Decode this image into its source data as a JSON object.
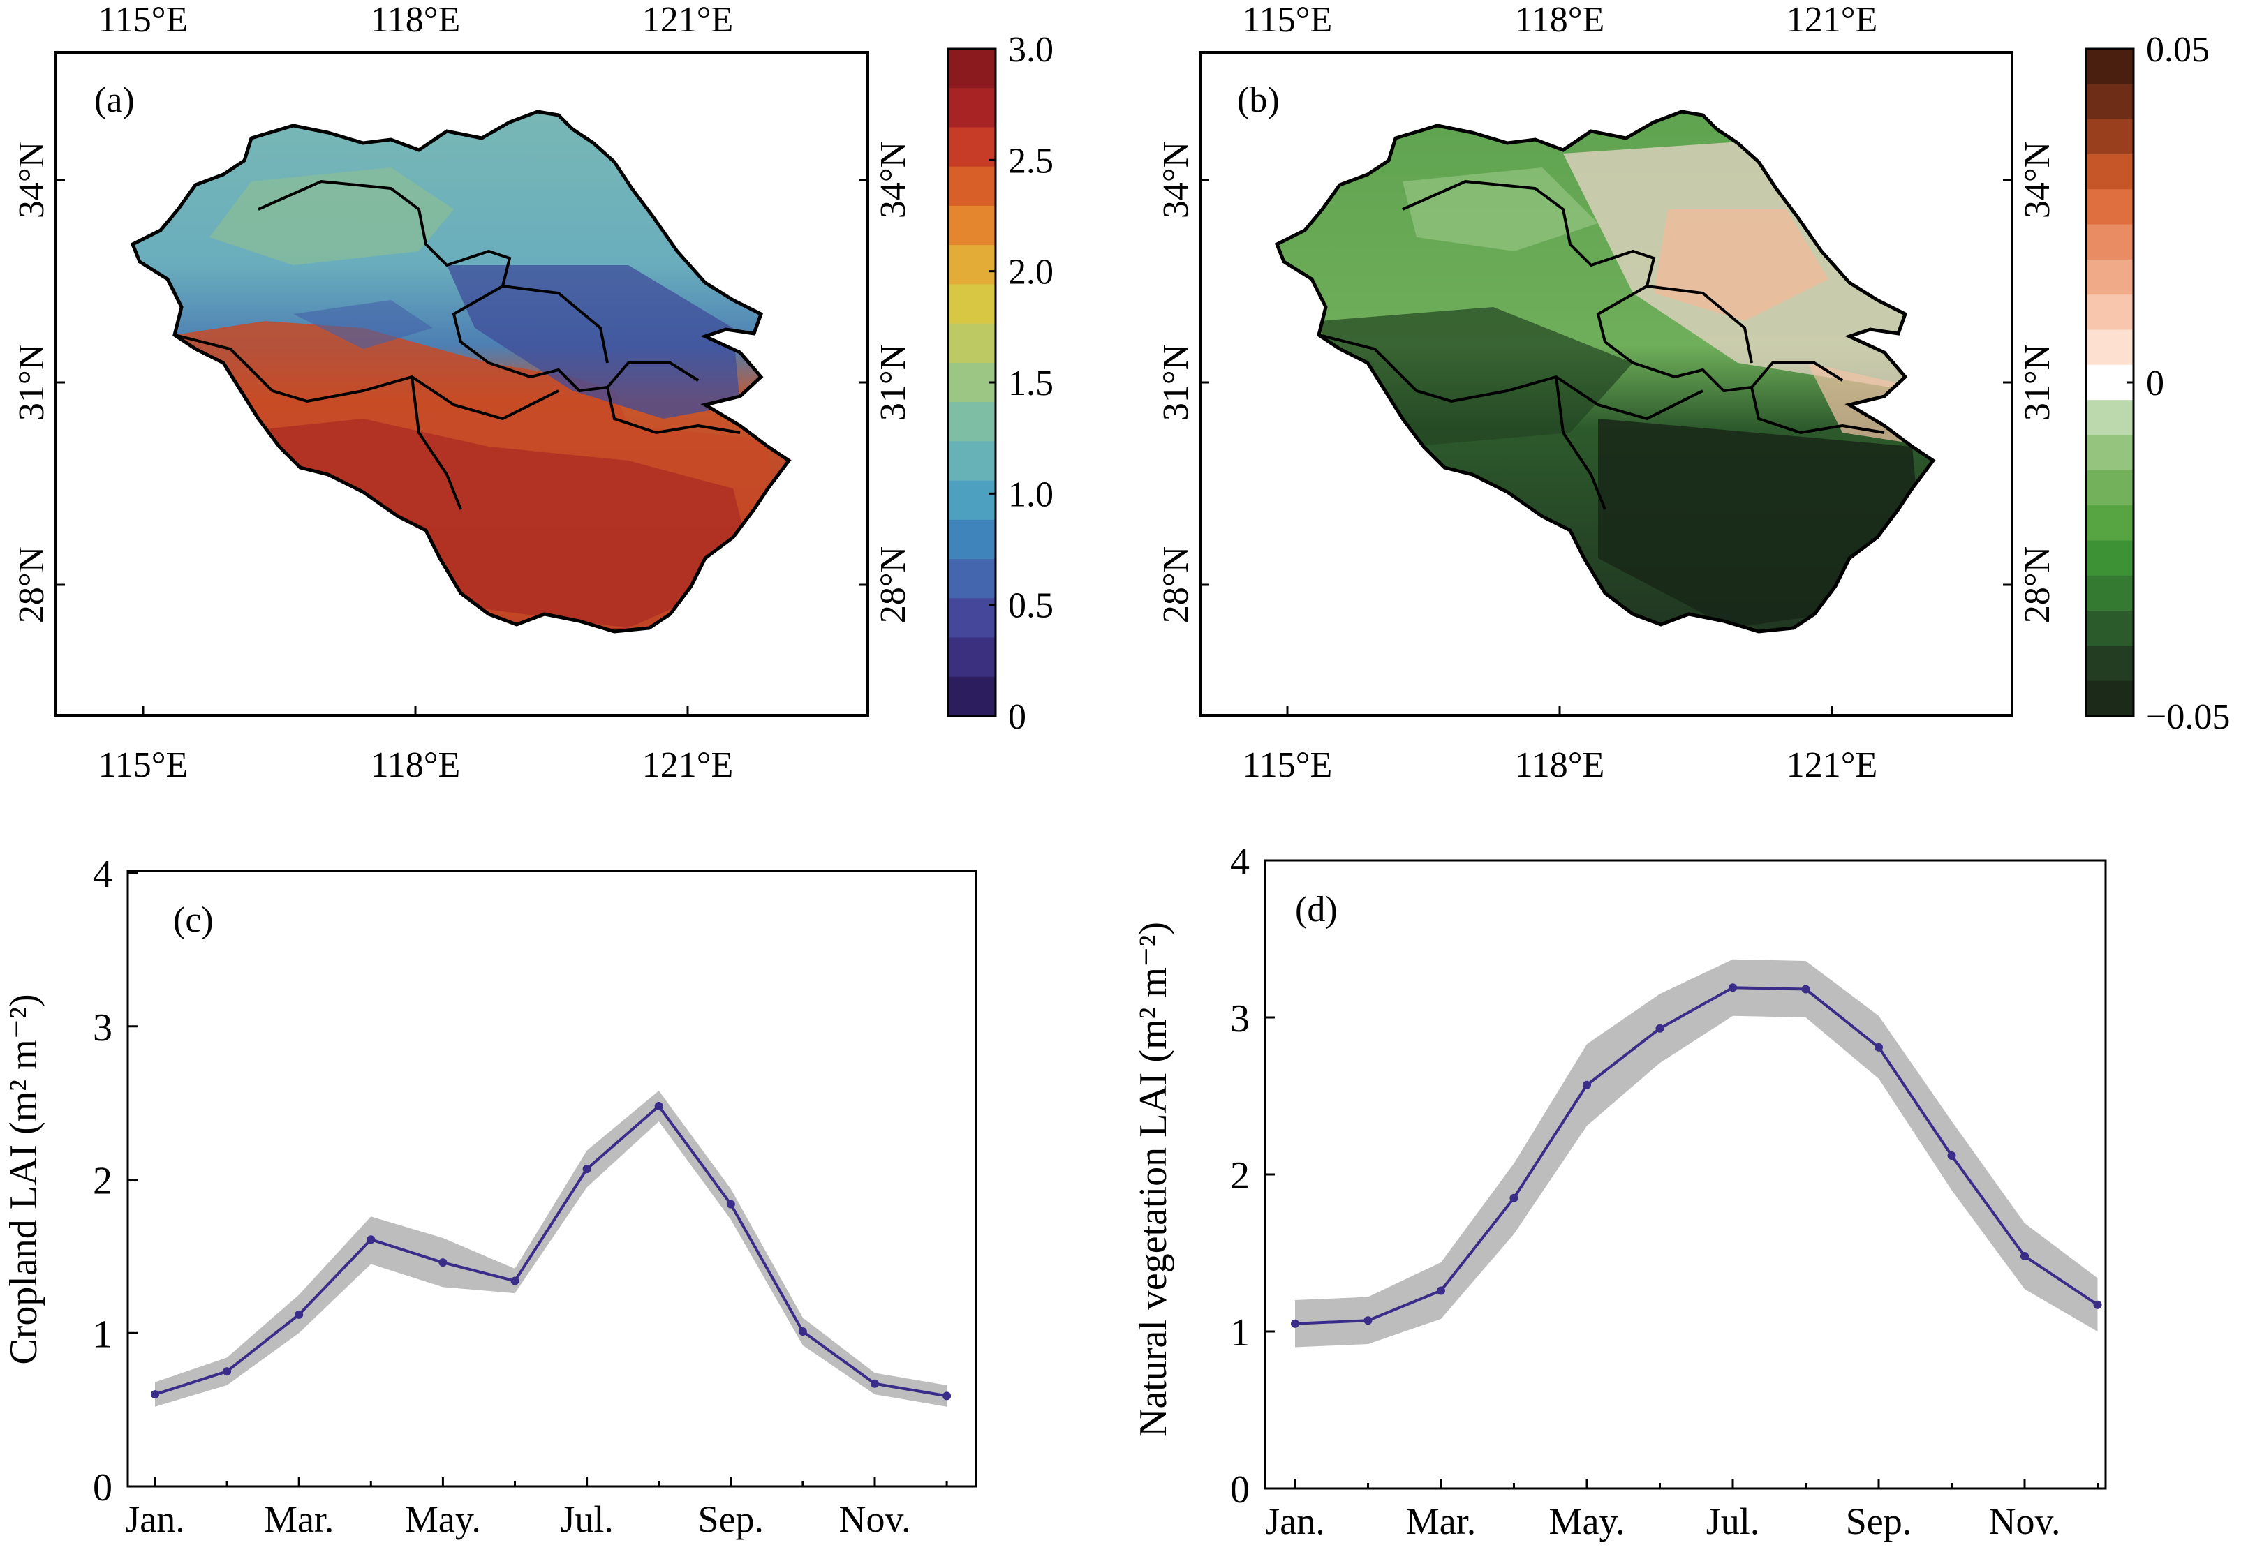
{
  "panels": {
    "a": {
      "label": "(a)",
      "lon_ticks": [
        "115°E",
        "118°E",
        "121°E"
      ],
      "lat_ticks": [
        "34°N",
        "31°N",
        "28°N"
      ],
      "colorbar": {
        "ticks": [
          "3.0",
          "2.5",
          "2.0",
          "1.5",
          "1.0",
          "0.5",
          "0"
        ],
        "colors": [
          "#2b1d5e",
          "#3b2f7f",
          "#44479a",
          "#4366ae",
          "#3f84ba",
          "#4ea0c1",
          "#67b2b7",
          "#7ebea4",
          "#9cc684",
          "#bdca63",
          "#d8c743",
          "#e3ac36",
          "#e3862d",
          "#d95f28",
          "#c63c27",
          "#a82424",
          "#8a1a1e"
        ]
      }
    },
    "b": {
      "label": "(b)",
      "lon_ticks": [
        "115°E",
        "118°E",
        "121°E"
      ],
      "lat_ticks": [
        "34°N",
        "31°N",
        "28°N"
      ],
      "colorbar": {
        "ticks": [
          "0.05",
          "0",
          "−0.05"
        ],
        "colors": [
          "#1c2a1a",
          "#223d22",
          "#2b5a2b",
          "#357a31",
          "#3e9236",
          "#56a442",
          "#73b25b",
          "#95c47e",
          "#bcd9ae",
          "#ffffff",
          "#fde0d0",
          "#f7c6ad",
          "#f0aa88",
          "#e98c64",
          "#df6f3f",
          "#c65628",
          "#9a3f1d",
          "#6e2d16",
          "#4a1f10"
        ]
      }
    },
    "c": {
      "label": "(c)",
      "ylabel": "Cropland LAI (m² m⁻²)",
      "y_ticks": [
        "0",
        "1",
        "2",
        "3",
        "4"
      ],
      "x_ticks": [
        "Jan.",
        "Mar.",
        "May.",
        "Jul.",
        "Sep.",
        "Nov."
      ]
    },
    "d": {
      "label": "(d)",
      "ylabel": "Natural vegetation LAI (m² m⁻²)",
      "y_ticks": [
        "0",
        "1",
        "2",
        "3",
        "4"
      ],
      "x_ticks": [
        "Jan.",
        "Mar.",
        "May.",
        "Jul.",
        "Sep.",
        "Nov."
      ]
    }
  },
  "chart_data": [
    {
      "type": "line",
      "panel": "c",
      "x": [
        "Jan.",
        "Feb.",
        "Mar.",
        "Apr.",
        "May.",
        "Jun.",
        "Jul.",
        "Aug.",
        "Sep.",
        "Oct.",
        "Nov.",
        "Dec."
      ],
      "series": [
        {
          "values": [
            0.6,
            0.75,
            1.12,
            1.61,
            1.46,
            1.34,
            2.07,
            2.48,
            1.84,
            1.01,
            0.67,
            0.59
          ],
          "lower": [
            0.52,
            0.66,
            1.0,
            1.45,
            1.3,
            1.26,
            1.95,
            2.38,
            1.74,
            0.92,
            0.6,
            0.52
          ],
          "upper": [
            0.68,
            0.84,
            1.25,
            1.76,
            1.62,
            1.42,
            2.19,
            2.58,
            1.94,
            1.1,
            0.74,
            0.66
          ]
        }
      ],
      "ylim": [
        0,
        4
      ],
      "colors": {
        "line": "#3a2d8a",
        "band": "#bdbdbd"
      }
    },
    {
      "type": "line",
      "panel": "d",
      "x": [
        "Jan.",
        "Feb.",
        "Mar.",
        "Apr.",
        "May.",
        "Jun.",
        "Jul.",
        "Aug.",
        "Sep.",
        "Oct.",
        "Nov.",
        "Dec."
      ],
      "series": [
        {
          "values": [
            1.05,
            1.07,
            1.26,
            1.85,
            2.57,
            2.93,
            3.19,
            3.18,
            2.81,
            2.12,
            1.48,
            1.17
          ],
          "lower": [
            0.9,
            0.92,
            1.08,
            1.62,
            2.31,
            2.71,
            3.01,
            3.0,
            2.61,
            1.9,
            1.27,
            1.0
          ],
          "upper": [
            1.2,
            1.22,
            1.44,
            2.07,
            2.83,
            3.15,
            3.37,
            3.36,
            3.01,
            2.34,
            1.69,
            1.34
          ]
        }
      ],
      "ylim": [
        0,
        4
      ],
      "colors": {
        "line": "#3a2d8a",
        "band": "#bdbdbd"
      }
    },
    {
      "type": "heatmap",
      "panel": "a",
      "colorbar_range": [
        0,
        3.0
      ]
    },
    {
      "type": "heatmap",
      "panel": "b",
      "colorbar_range": [
        -0.05,
        0.05
      ]
    }
  ]
}
